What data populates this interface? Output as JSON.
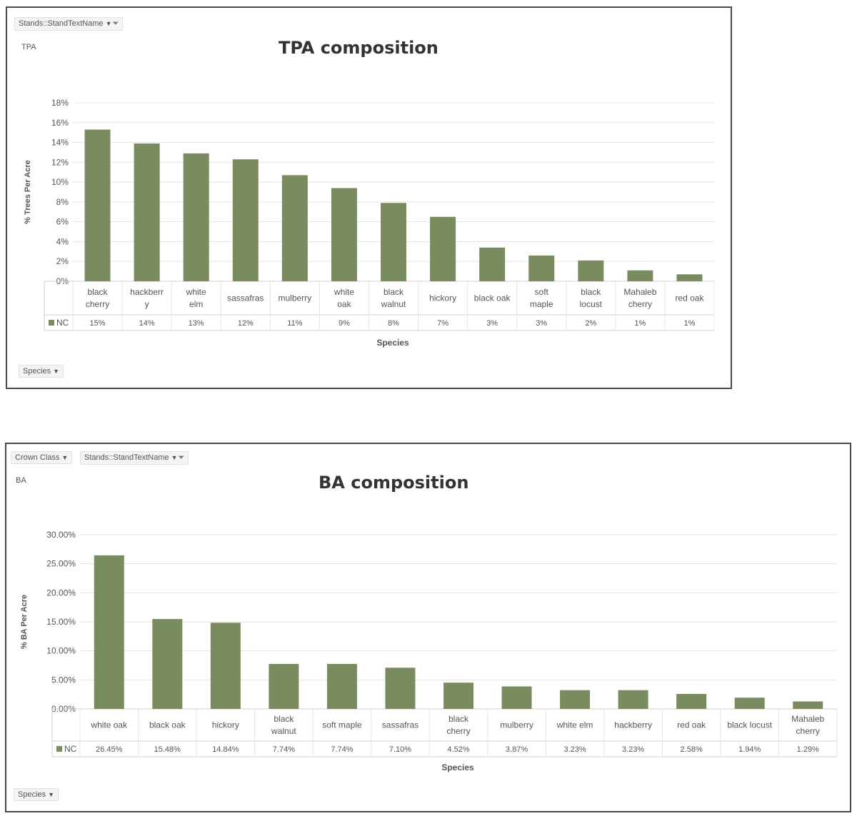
{
  "panels": [
    {
      "field_chips": [
        {
          "label": "Stands::StandTextName",
          "filter": true
        }
      ],
      "measure_label": "TPA",
      "axis_field_chip": "Species",
      "chart_data": {
        "type": "bar",
        "title": "TPA composition",
        "xlabel": "Species",
        "ylabel": "% Trees Per Acre",
        "ylim": [
          0,
          0.18
        ],
        "y_ticks": [
          "0%",
          "2%",
          "4%",
          "6%",
          "8%",
          "10%",
          "12%",
          "14%",
          "16%",
          "18%"
        ],
        "grid": true,
        "categories": [
          [
            "black",
            "cherry"
          ],
          [
            "hackberr",
            "y"
          ],
          [
            "white",
            "elm"
          ],
          [
            "sassafras"
          ],
          [
            "mulberry"
          ],
          [
            "white",
            "oak"
          ],
          [
            "black",
            "walnut"
          ],
          [
            "hickory"
          ],
          [
            "black oak"
          ],
          [
            "soft",
            "maple"
          ],
          [
            "black",
            "locust"
          ],
          [
            "Mahaleb",
            "cherry"
          ],
          [
            "red oak"
          ]
        ],
        "series": [
          {
            "name": "NC",
            "values": [
              0.153,
              0.139,
              0.129,
              0.123,
              0.107,
              0.094,
              0.079,
              0.065,
              0.034,
              0.026,
              0.021,
              0.011,
              0.007
            ],
            "labels": [
              "15%",
              "14%",
              "13%",
              "12%",
              "11%",
              "9%",
              "8%",
              "7%",
              "3%",
              "3%",
              "2%",
              "1%",
              "1%"
            ]
          }
        ],
        "bar_color": "#7a8c5f"
      }
    },
    {
      "field_chips": [
        {
          "label": "Crown Class",
          "filter": false
        },
        {
          "label": "Stands::StandTextName",
          "filter": true
        }
      ],
      "measure_label": "BA",
      "axis_field_chip": "Species",
      "chart_data": {
        "type": "bar",
        "title": "BA composition",
        "xlabel": "Species",
        "ylabel": "% BA Per Acre",
        "ylim": [
          0,
          0.3
        ],
        "y_ticks": [
          "0.00%",
          "5.00%",
          "10.00%",
          "15.00%",
          "20.00%",
          "25.00%",
          "30.00%"
        ],
        "grid": true,
        "categories": [
          [
            "white oak"
          ],
          [
            "black oak"
          ],
          [
            "hickory"
          ],
          [
            "black",
            "walnut"
          ],
          [
            "soft maple"
          ],
          [
            "sassafras"
          ],
          [
            "black",
            "cherry"
          ],
          [
            "mulberry"
          ],
          [
            "white elm"
          ],
          [
            "hackberry"
          ],
          [
            "red oak"
          ],
          [
            "black locust"
          ],
          [
            "Mahaleb",
            "cherry"
          ]
        ],
        "series": [
          {
            "name": "NC",
            "values": [
              0.2645,
              0.1548,
              0.1484,
              0.0774,
              0.0774,
              0.071,
              0.0452,
              0.0387,
              0.0323,
              0.0323,
              0.0258,
              0.0194,
              0.0129
            ],
            "labels": [
              "26.45%",
              "15.48%",
              "14.84%",
              "7.74%",
              "7.74%",
              "7.10%",
              "4.52%",
              "3.87%",
              "3.23%",
              "3.23%",
              "2.58%",
              "1.94%",
              "1.29%"
            ]
          }
        ],
        "bar_color": "#7a8c5f"
      }
    }
  ]
}
